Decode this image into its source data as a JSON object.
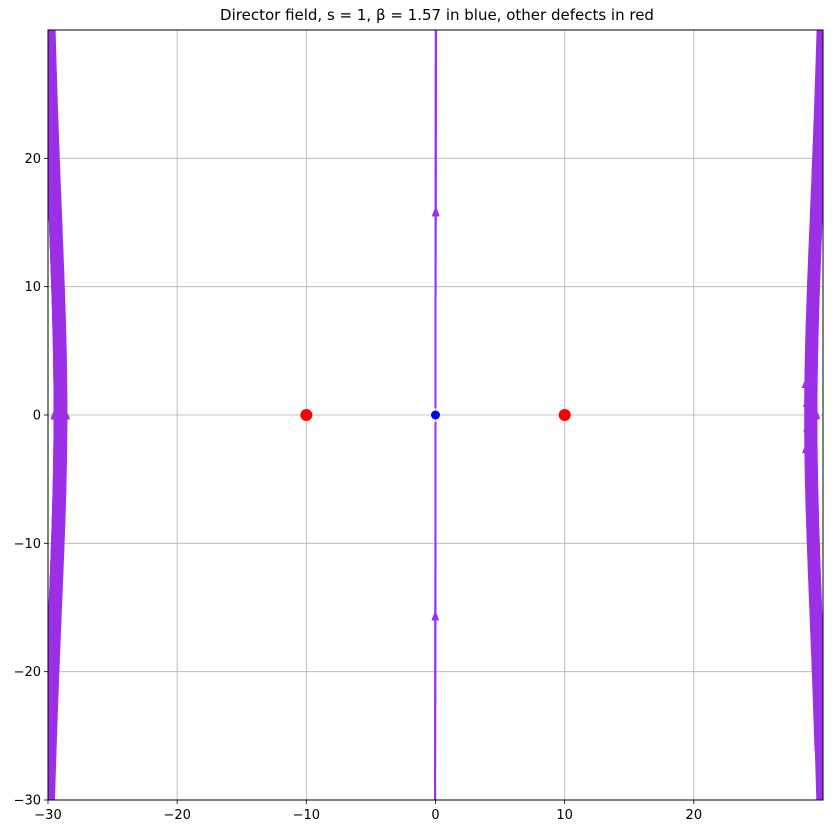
{
  "chart_data": {
    "type": "streamplot",
    "title": "Director field, s = 1, β = 1.57 in blue, other defects in red",
    "xlabel": "",
    "ylabel": "",
    "xlim": [
      -30,
      30
    ],
    "ylim": [
      -30,
      30
    ],
    "grid": true,
    "x_ticks": [
      -30,
      -20,
      -10,
      0,
      10,
      20
    ],
    "y_ticks": [
      -30,
      -20,
      -10,
      0,
      10,
      20
    ],
    "x_tick_labels": [
      "−30",
      "−20",
      "−10",
      "0",
      "10",
      "20"
    ],
    "y_tick_labels": [
      "−30",
      "−20",
      "−10",
      "0",
      "10",
      "20"
    ],
    "field": {
      "main_defect_charge": 1,
      "beta": 1.57
    },
    "defects": [
      {
        "x": 0,
        "y": 0,
        "color": "#0000ff"
      },
      {
        "x": -10,
        "y": 0,
        "color": "#ff0000"
      },
      {
        "x": 10,
        "y": 0,
        "color": "#ff0000"
      }
    ],
    "colors": {
      "stream": "#9b30e6",
      "axes": "#000000",
      "grid": "#b0b0b0"
    }
  }
}
